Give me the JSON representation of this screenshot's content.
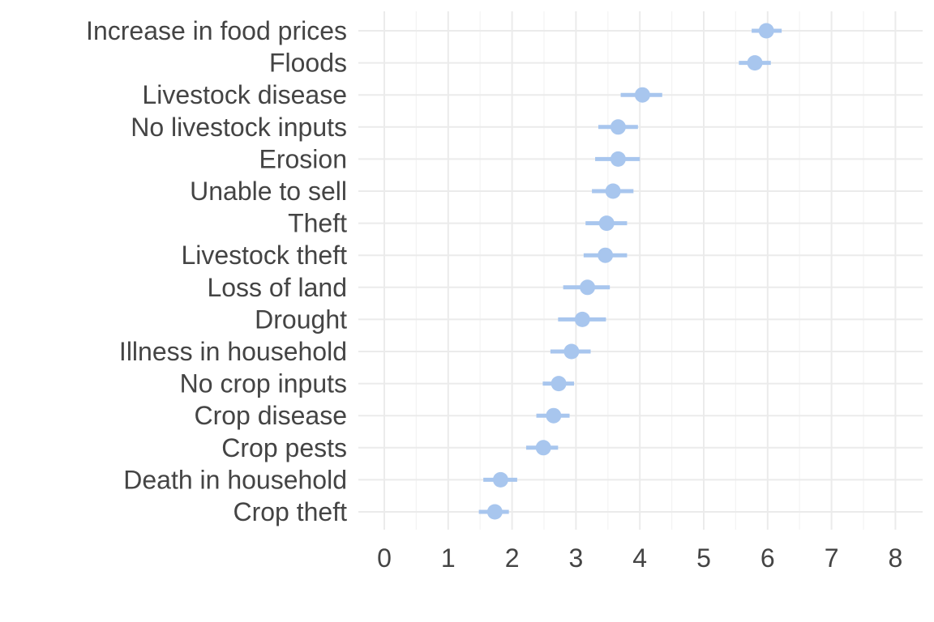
{
  "chart_data": {
    "type": "scatter",
    "subtype": "point-range",
    "title": "",
    "xlabel": "",
    "ylabel": "",
    "xlim": [
      0,
      8
    ],
    "x_ticks": [
      "0",
      "1",
      "2",
      "3",
      "4",
      "5",
      "6",
      "7",
      "8"
    ],
    "grid": true,
    "legend": "none",
    "point_color": "#A8C6EE",
    "categories": [
      "Increase in food prices",
      "Floods",
      "Livestock disease",
      "No livestock inputs",
      "Erosion",
      "Unable to sell",
      "Theft",
      "Livestock theft",
      "Loss of land",
      "Drought",
      "Illness in household",
      "No crop inputs",
      "Crop disease",
      "Crop pests",
      "Death in household",
      "Crop theft"
    ],
    "values": [
      5.98,
      5.8,
      4.04,
      3.66,
      3.66,
      3.58,
      3.48,
      3.46,
      3.18,
      3.1,
      2.93,
      2.73,
      2.65,
      2.49,
      1.82,
      1.73
    ],
    "ci_low": [
      5.75,
      5.55,
      3.7,
      3.35,
      3.3,
      3.25,
      3.15,
      3.12,
      2.8,
      2.72,
      2.6,
      2.48,
      2.38,
      2.22,
      1.55,
      1.48
    ],
    "ci_high": [
      6.22,
      6.05,
      4.35,
      3.97,
      4.0,
      3.9,
      3.8,
      3.8,
      3.53,
      3.47,
      3.23,
      2.97,
      2.9,
      2.72,
      2.08,
      1.95
    ]
  }
}
